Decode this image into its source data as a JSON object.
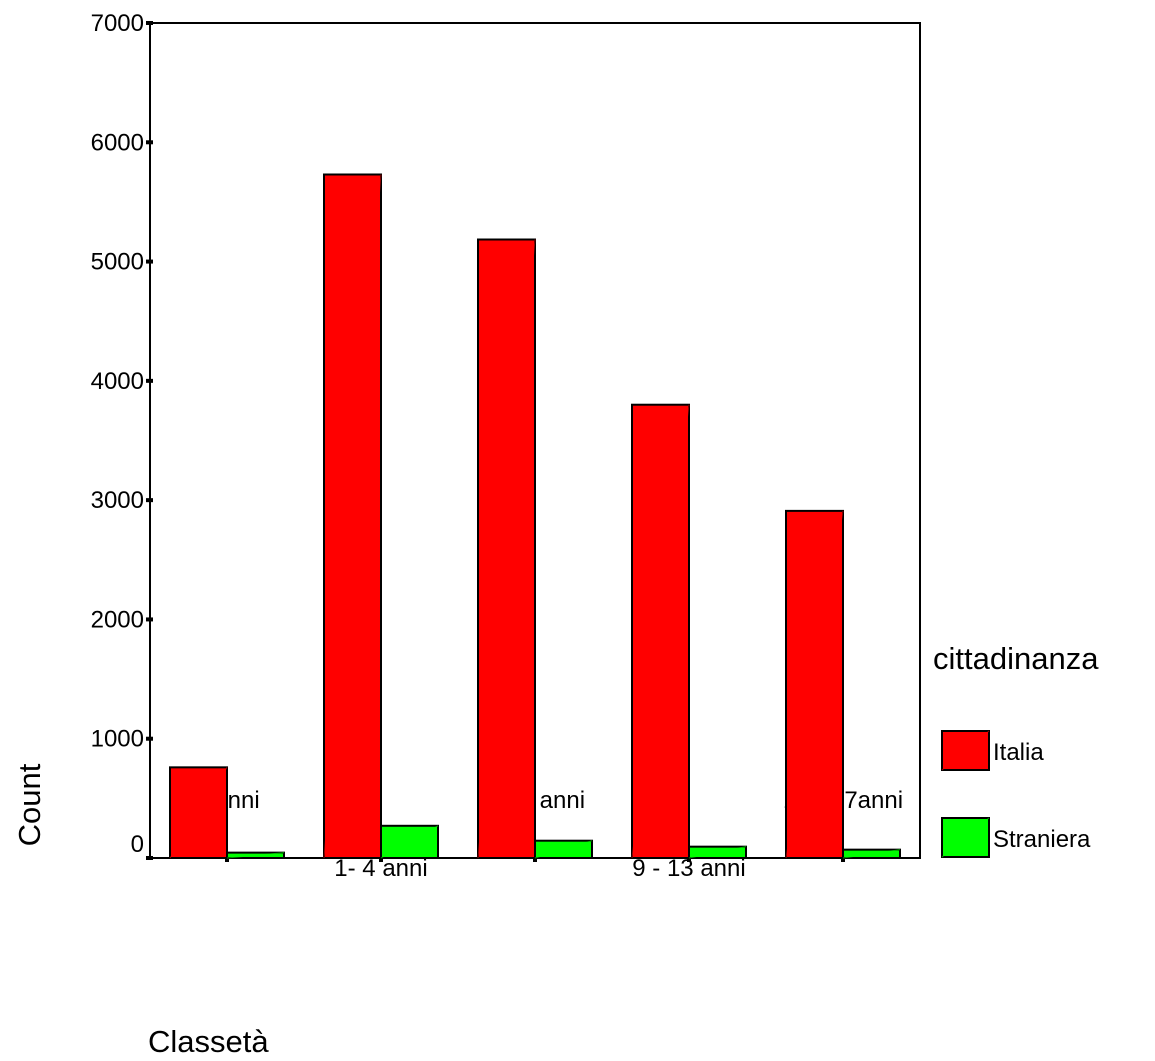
{
  "chart_data": {
    "type": "bar",
    "title": "",
    "xlabel": "Classetà",
    "ylabel": "Count",
    "categories": [
      "0 anni",
      "1- 4 anni",
      "5 - 8 anni",
      "9 - 13 anni",
      "14 - 17anni"
    ],
    "series": [
      {
        "name": "Italia",
        "color": "#ff0000",
        "values": [
          760,
          5730,
          5185,
          3800,
          2910
        ]
      },
      {
        "name": "Straniera",
        "color": "#00ff00",
        "values": [
          45,
          270,
          145,
          95,
          70
        ]
      }
    ],
    "ylim": [
      0,
      7000
    ],
    "yticks": [
      0,
      1000,
      2000,
      3000,
      4000,
      5000,
      6000,
      7000
    ],
    "grid": false,
    "legend": {
      "title": "cittadinanza",
      "position": "right",
      "entries": [
        "Italia",
        "Straniera"
      ]
    }
  }
}
